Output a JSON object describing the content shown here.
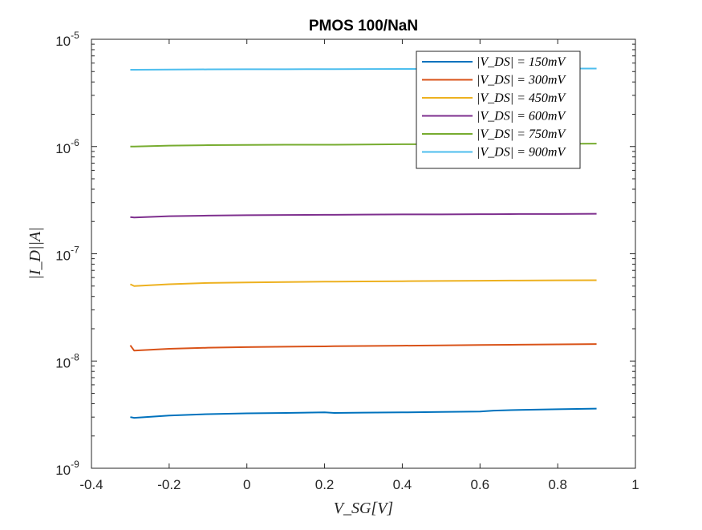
{
  "chart_data": {
    "type": "line",
    "title": "PMOS 100/NaN",
    "xlabel": "V_SG[V]",
    "ylabel": "|I_D||A|",
    "xlim": [
      -0.4,
      1
    ],
    "ylim": [
      1e-09,
      1e-05
    ],
    "y_scale": "log",
    "grid": false,
    "legend_position": "top-right",
    "x_ticks": [
      "-0.4",
      "-0.2",
      "0",
      "0.2",
      "0.4",
      "0.6",
      "0.8",
      "1"
    ],
    "x_tick_values": [
      -0.4,
      -0.2,
      0,
      0.2,
      0.4,
      0.6,
      0.8,
      1
    ],
    "y_ticks": [
      {
        "base": "10",
        "exp": "-9",
        "value": 1e-09
      },
      {
        "base": "10",
        "exp": "-8",
        "value": 1e-08
      },
      {
        "base": "10",
        "exp": "-7",
        "value": 1e-07
      },
      {
        "base": "10",
        "exp": "-6",
        "value": 1e-06
      },
      {
        "base": "10",
        "exp": "-5",
        "value": 1e-05
      }
    ],
    "x": [
      -0.3,
      -0.29,
      -0.2,
      -0.1,
      0,
      0.1,
      0.2,
      0.225,
      0.3,
      0.4,
      0.5,
      0.6,
      0.635,
      0.7,
      0.8,
      0.9
    ],
    "series": [
      {
        "name": "|V_DS| = 150mV",
        "color": "#0072BD",
        "values": [
          3e-09,
          2.95e-09,
          3.1e-09,
          3.2e-09,
          3.25e-09,
          3.28e-09,
          3.32e-09,
          3.28e-09,
          3.3e-09,
          3.32e-09,
          3.35e-09,
          3.38e-09,
          3.45e-09,
          3.5e-09,
          3.55e-09,
          3.6e-09
        ]
      },
      {
        "name": "|V_DS| = 300mV",
        "color": "#D95319",
        "values": [
          1.4e-08,
          1.25e-08,
          1.3e-08,
          1.33e-08,
          1.35e-08,
          1.36e-08,
          1.37e-08,
          1.375e-08,
          1.38e-08,
          1.39e-08,
          1.4e-08,
          1.41e-08,
          1.415e-08,
          1.42e-08,
          1.43e-08,
          1.44e-08
        ]
      },
      {
        "name": "|V_DS| = 450mV",
        "color": "#EDB120",
        "values": [
          5.2e-08,
          5e-08,
          5.2e-08,
          5.35e-08,
          5.4e-08,
          5.45e-08,
          5.5e-08,
          5.5e-08,
          5.52e-08,
          5.55e-08,
          5.58e-08,
          5.6e-08,
          5.62e-08,
          5.63e-08,
          5.65e-08,
          5.67e-08
        ]
      },
      {
        "name": "|V_DS| = 600mV",
        "color": "#7E2F8E",
        "values": [
          2.2e-07,
          2.18e-07,
          2.24e-07,
          2.27e-07,
          2.29e-07,
          2.3e-07,
          2.31e-07,
          2.31e-07,
          2.32e-07,
          2.33e-07,
          2.33e-07,
          2.34e-07,
          2.34e-07,
          2.35e-07,
          2.35e-07,
          2.36e-07
        ]
      },
      {
        "name": "|V_DS| = 750mV",
        "color": "#77AC30",
        "values": [
          1e-06,
          1e-06,
          1.02e-06,
          1.03e-06,
          1.035e-06,
          1.04e-06,
          1.04e-06,
          1.04e-06,
          1.045e-06,
          1.05e-06,
          1.05e-06,
          1.055e-06,
          1.055e-06,
          1.06e-06,
          1.06e-06,
          1.065e-06
        ]
      },
      {
        "name": "|V_DS| = 900mV",
        "color": "#4DBEEE",
        "values": [
          5.2e-06,
          5.2e-06,
          5.22e-06,
          5.24e-06,
          5.25e-06,
          5.26e-06,
          5.27e-06,
          5.27e-06,
          5.28e-06,
          5.29e-06,
          5.3e-06,
          5.31e-06,
          5.31e-06,
          5.32e-06,
          5.33e-06,
          5.34e-06
        ]
      }
    ]
  }
}
